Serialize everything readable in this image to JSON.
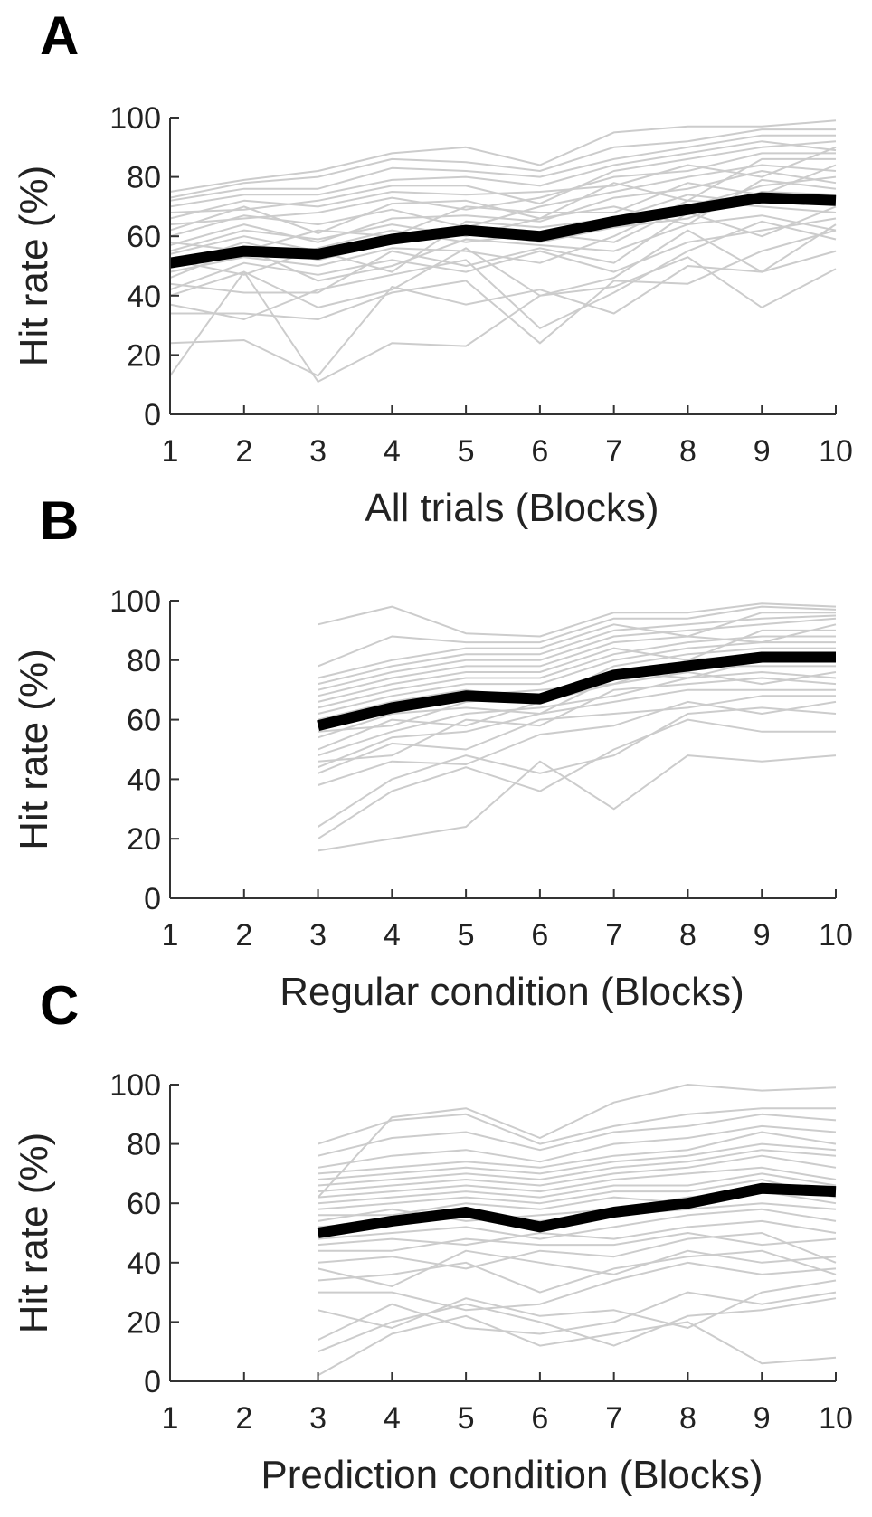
{
  "chart_data": [
    {
      "type": "line",
      "panel": "A",
      "xlabel": "All trials (Blocks)",
      "ylabel": "Hit rate (%)",
      "x": [
        1,
        2,
        3,
        4,
        5,
        6,
        7,
        8,
        9,
        10
      ],
      "xlim": [
        1,
        10
      ],
      "ylim": [
        0,
        100
      ],
      "xticks": [
        "1",
        "2",
        "3",
        "4",
        "5",
        "6",
        "7",
        "8",
        "9",
        "10"
      ],
      "yticks": [
        "0",
        "20",
        "40",
        "60",
        "80",
        "100"
      ],
      "grid": false,
      "mean_color": "#000000",
      "individual_color": "#cccccc",
      "mean": [
        51,
        55,
        54,
        59,
        62,
        60,
        65,
        69,
        73,
        72
      ],
      "individual": [
        [
          13,
          48,
          11,
          24,
          23,
          40,
          43,
          53,
          36,
          49
        ],
        [
          24,
          25,
          13,
          43,
          37,
          42,
          34,
          50,
          48,
          55
        ],
        [
          34,
          34,
          32,
          41,
          45,
          24,
          45,
          44,
          55,
          62
        ],
        [
          37,
          32,
          42,
          47,
          52,
          29,
          41,
          55,
          65,
          59
        ],
        [
          40,
          48,
          36,
          42,
          56,
          40,
          46,
          62,
          48,
          64
        ],
        [
          42,
          51,
          47,
          52,
          48,
          55,
          48,
          58,
          62,
          66
        ],
        [
          44,
          41,
          41,
          55,
          50,
          56,
          51,
          68,
          60,
          70
        ],
        [
          46,
          56,
          45,
          50,
          59,
          57,
          55,
          64,
          67,
          62
        ],
        [
          48,
          53,
          50,
          56,
          55,
          51,
          60,
          72,
          70,
          68
        ],
        [
          50,
          58,
          52,
          58,
          62,
          58,
          63,
          66,
          75,
          74
        ],
        [
          52,
          47,
          56,
          62,
          58,
          61,
          58,
          70,
          77,
          80
        ],
        [
          54,
          60,
          55,
          48,
          65,
          63,
          66,
          74,
          71,
          72
        ],
        [
          55,
          62,
          59,
          64,
          60,
          66,
          70,
          64,
          79,
          76
        ],
        [
          57,
          64,
          58,
          66,
          67,
          65,
          73,
          76,
          82,
          78
        ],
        [
          58,
          55,
          62,
          60,
          70,
          68,
          68,
          78,
          74,
          84
        ],
        [
          60,
          67,
          64,
          69,
          63,
          70,
          75,
          80,
          84,
          82
        ],
        [
          62,
          70,
          61,
          71,
          72,
          66,
          78,
          72,
          86,
          86
        ],
        [
          64,
          66,
          68,
          73,
          69,
          73,
          80,
          82,
          88,
          88
        ],
        [
          66,
          72,
          70,
          75,
          74,
          75,
          77,
          84,
          80,
          90
        ],
        [
          68,
          69,
          72,
          77,
          77,
          71,
          82,
          86,
          90,
          92
        ],
        [
          70,
          74,
          74,
          79,
          80,
          77,
          84,
          88,
          92,
          89
        ],
        [
          72,
          76,
          76,
          83,
          82,
          80,
          86,
          90,
          94,
          94
        ],
        [
          73,
          78,
          80,
          86,
          85,
          82,
          90,
          92,
          96,
          96
        ],
        [
          75,
          79,
          82,
          88,
          90,
          84,
          95,
          97,
          97,
          99
        ]
      ]
    },
    {
      "type": "line",
      "panel": "B",
      "xlabel": "Regular condition (Blocks)",
      "ylabel": "Hit rate (%)",
      "x": [
        3,
        4,
        5,
        6,
        7,
        8,
        9,
        10
      ],
      "xlim": [
        1,
        10
      ],
      "ylim": [
        0,
        100
      ],
      "xticks": [
        "1",
        "2",
        "3",
        "4",
        "5",
        "6",
        "7",
        "8",
        "9",
        "10"
      ],
      "yticks": [
        "0",
        "20",
        "40",
        "60",
        "80",
        "100"
      ],
      "grid": false,
      "mean_color": "#000000",
      "individual_color": "#cccccc",
      "mean": [
        58,
        64,
        68,
        67,
        75,
        78,
        81,
        81
      ],
      "individual": [
        [
          16,
          20,
          24,
          46,
          30,
          48,
          46,
          48
        ],
        [
          20,
          36,
          44,
          36,
          50,
          60,
          56,
          56
        ],
        [
          24,
          40,
          48,
          42,
          48,
          62,
          64,
          62
        ],
        [
          38,
          46,
          45,
          55,
          58,
          66,
          62,
          66
        ],
        [
          42,
          52,
          50,
          60,
          62,
          64,
          68,
          68
        ],
        [
          44,
          54,
          56,
          62,
          66,
          70,
          70,
          70
        ],
        [
          46,
          48,
          60,
          58,
          70,
          72,
          74,
          72
        ],
        [
          48,
          56,
          62,
          64,
          68,
          74,
          76,
          74
        ],
        [
          50,
          60,
          58,
          66,
          72,
          76,
          72,
          76
        ],
        [
          54,
          62,
          64,
          62,
          74,
          78,
          78,
          78
        ],
        [
          56,
          58,
          66,
          68,
          76,
          74,
          80,
          80
        ],
        [
          58,
          64,
          68,
          70,
          72,
          80,
          82,
          82
        ],
        [
          60,
          66,
          70,
          66,
          78,
          82,
          84,
          84
        ],
        [
          62,
          68,
          72,
          72,
          80,
          84,
          86,
          86
        ],
        [
          64,
          70,
          74,
          74,
          82,
          86,
          88,
          88
        ],
        [
          66,
          72,
          76,
          76,
          84,
          80,
          90,
          90
        ],
        [
          68,
          74,
          78,
          78,
          86,
          88,
          86,
          92
        ],
        [
          70,
          76,
          80,
          80,
          88,
          90,
          92,
          94
        ],
        [
          72,
          78,
          82,
          82,
          90,
          92,
          94,
          95
        ],
        [
          74,
          80,
          84,
          84,
          92,
          88,
          96,
          96
        ],
        [
          78,
          88,
          86,
          86,
          94,
          94,
          98,
          97
        ],
        [
          92,
          98,
          89,
          88,
          96,
          96,
          99,
          98
        ]
      ]
    },
    {
      "type": "line",
      "panel": "C",
      "xlabel": "Prediction condition (Blocks)",
      "ylabel": "Hit rate (%)",
      "x": [
        3,
        4,
        5,
        6,
        7,
        8,
        9,
        10
      ],
      "xlim": [
        1,
        10
      ],
      "ylim": [
        0,
        100
      ],
      "xticks": [
        "1",
        "2",
        "3",
        "4",
        "5",
        "6",
        "7",
        "8",
        "9",
        "10"
      ],
      "yticks": [
        "0",
        "20",
        "40",
        "60",
        "80",
        "100"
      ],
      "grid": false,
      "mean_color": "#000000",
      "individual_color": "#cccccc",
      "mean": [
        50,
        54,
        57,
        52,
        57,
        60,
        65,
        64
      ],
      "individual": [
        [
          2,
          16,
          22,
          12,
          16,
          20,
          6,
          8
        ],
        [
          10,
          20,
          26,
          20,
          12,
          22,
          24,
          28
        ],
        [
          14,
          26,
          18,
          16,
          20,
          30,
          26,
          30
        ],
        [
          24,
          18,
          28,
          22,
          24,
          18,
          30,
          34
        ],
        [
          30,
          30,
          24,
          26,
          34,
          40,
          36,
          38
        ],
        [
          34,
          36,
          40,
          30,
          38,
          42,
          44,
          36
        ],
        [
          38,
          32,
          44,
          40,
          36,
          44,
          40,
          42
        ],
        [
          40,
          42,
          38,
          44,
          42,
          48,
          50,
          40
        ],
        [
          44,
          44,
          48,
          46,
          46,
          50,
          46,
          48
        ],
        [
          46,
          48,
          46,
          50,
          48,
          52,
          54,
          50
        ],
        [
          48,
          50,
          52,
          48,
          52,
          56,
          58,
          54
        ],
        [
          52,
          54,
          56,
          54,
          56,
          58,
          60,
          58
        ],
        [
          54,
          58,
          54,
          56,
          58,
          62,
          64,
          60
        ],
        [
          56,
          56,
          60,
          58,
          62,
          60,
          66,
          64
        ],
        [
          58,
          60,
          62,
          60,
          64,
          64,
          68,
          62
        ],
        [
          60,
          62,
          64,
          62,
          66,
          66,
          70,
          66
        ],
        [
          62,
          64,
          66,
          64,
          68,
          70,
          72,
          68
        ],
        [
          64,
          66,
          68,
          66,
          70,
          72,
          76,
          72
        ],
        [
          66,
          68,
          70,
          68,
          72,
          74,
          78,
          76
        ],
        [
          68,
          70,
          72,
          70,
          74,
          76,
          80,
          78
        ],
        [
          70,
          72,
          74,
          72,
          76,
          78,
          84,
          80
        ],
        [
          72,
          76,
          78,
          74,
          80,
          82,
          86,
          84
        ],
        [
          76,
          82,
          84,
          78,
          84,
          86,
          90,
          88
        ],
        [
          80,
          88,
          90,
          80,
          86,
          90,
          92,
          92
        ],
        [
          62,
          89,
          92,
          82,
          94,
          100,
          98,
          99
        ]
      ]
    }
  ]
}
